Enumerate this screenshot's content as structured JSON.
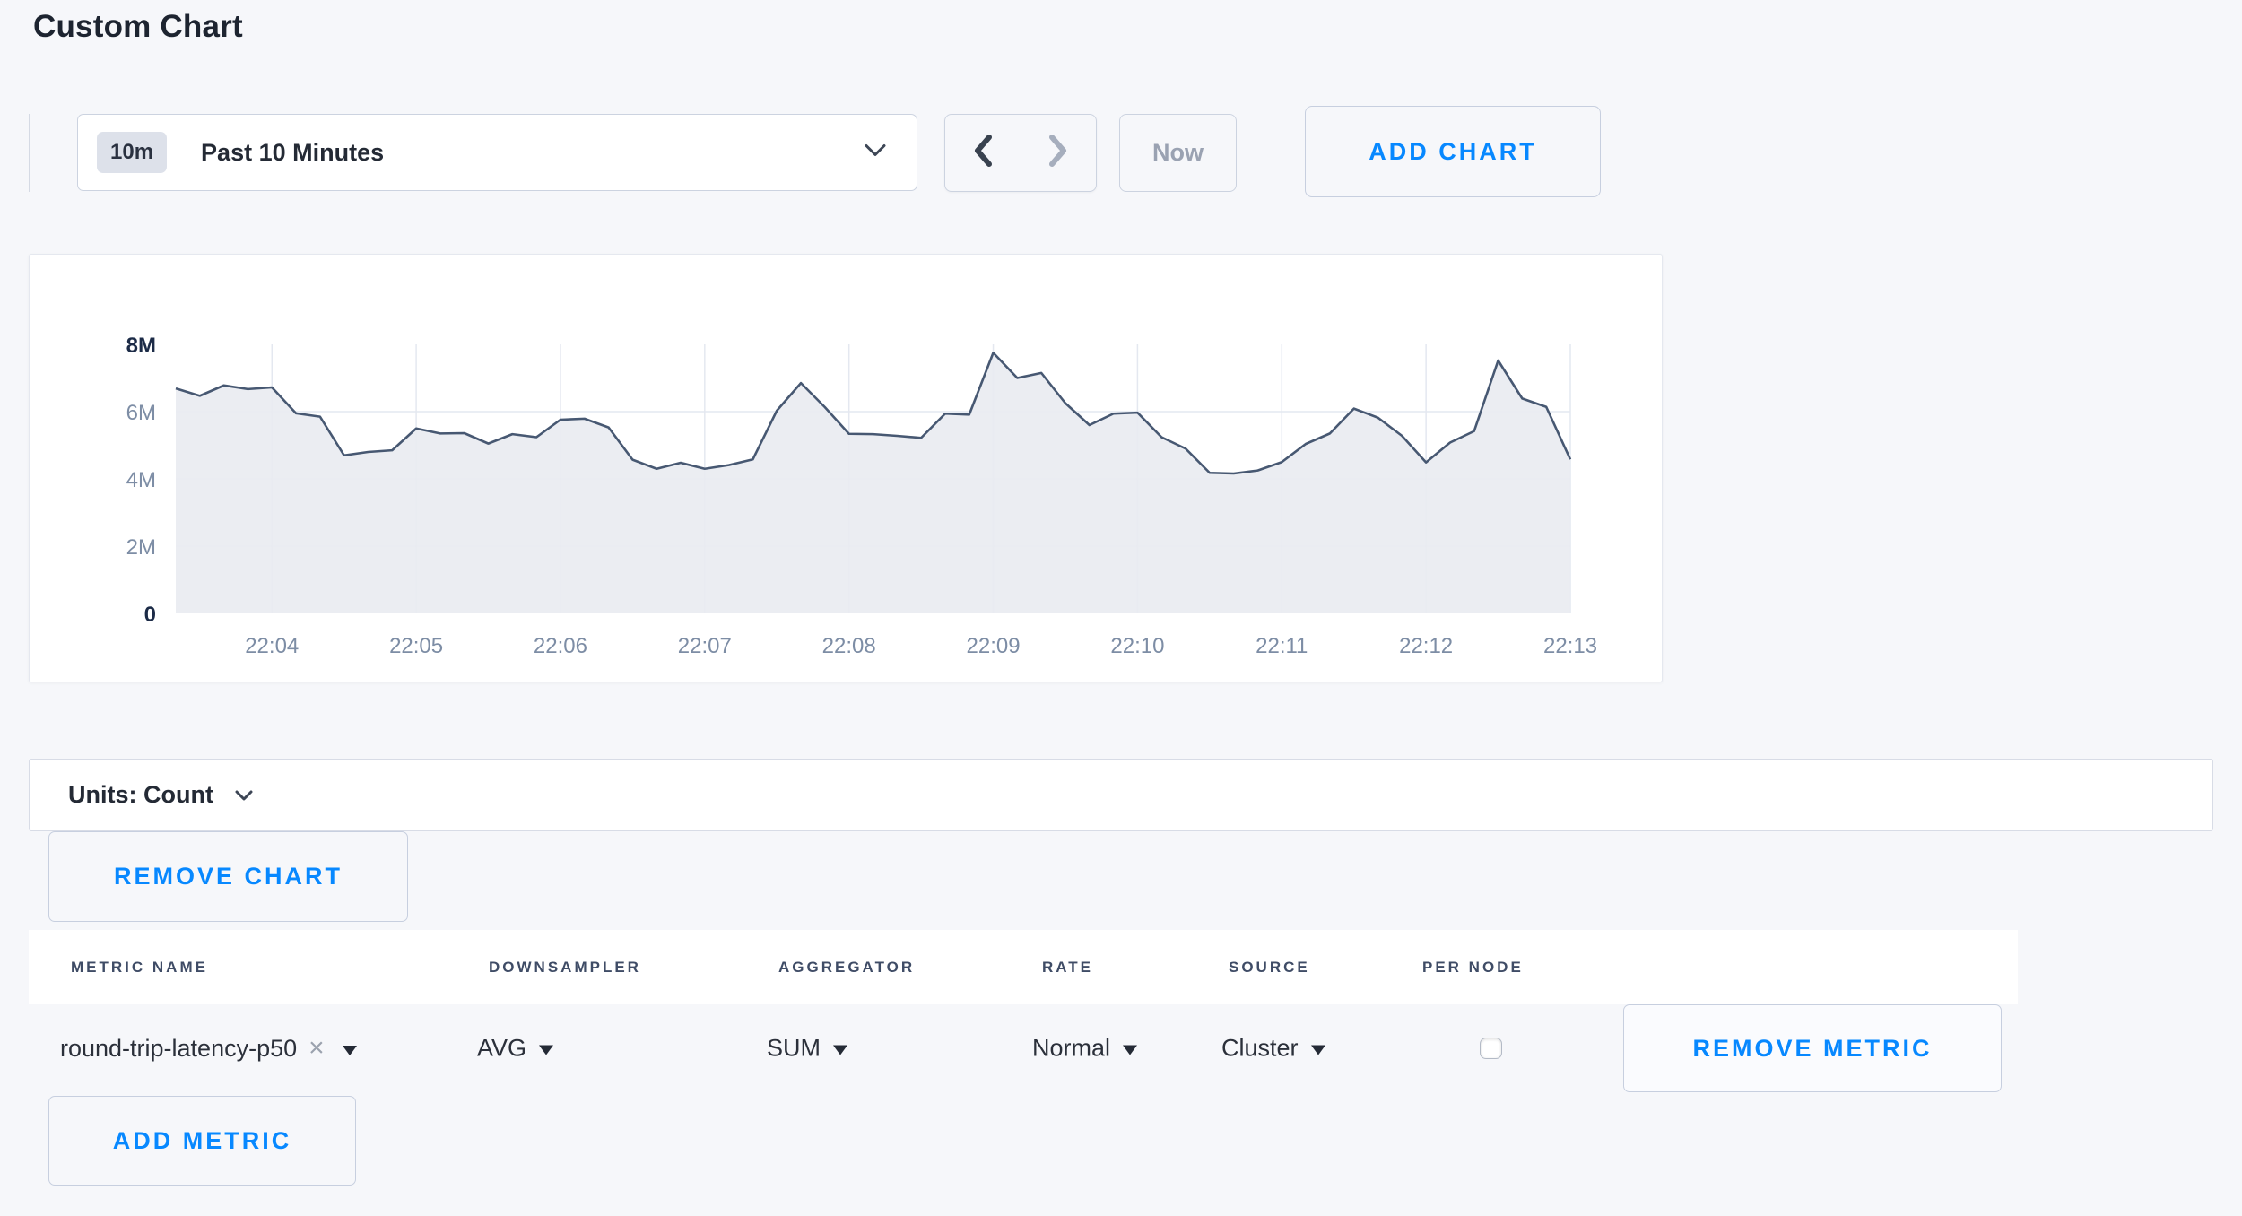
{
  "page": {
    "title": "Custom Chart"
  },
  "toolbar": {
    "time_badge": "10m",
    "time_label": "Past 10 Minutes",
    "now_label": "Now",
    "add_chart_label": "ADD CHART"
  },
  "units_bar": {
    "label": "Units: Count"
  },
  "chart_section": {
    "remove_chart_label": "REMOVE CHART"
  },
  "icons": {
    "clear_metric": "×"
  },
  "colors": {
    "accent_blue": "#0788ff",
    "page_background": "#f6f7fa",
    "chart_line": "#475872",
    "chart_fill": "#e9ebf1",
    "gridline": "#e4e8f0",
    "axis_strong": "#1c2b47",
    "axis_muted": "#7d8da5",
    "header_text": "#3f4c66",
    "muted_text": "#9aa2b2"
  },
  "chart_data": {
    "type": "area",
    "title": "",
    "unit": "Count",
    "x_start_time": "22:03:20",
    "x_step_seconds": 10,
    "ylim_millions": [
      0,
      8
    ],
    "y_gridlines_millions": [
      2,
      4,
      6
    ],
    "y_ticks": [
      {
        "label": "0",
        "value": 0,
        "strong": true
      },
      {
        "label": "2M",
        "value": 2
      },
      {
        "label": "4M",
        "value": 4
      },
      {
        "label": "6M",
        "value": 6
      },
      {
        "label": "8M",
        "value": 8,
        "strong": true
      }
    ],
    "x_ticks": [
      {
        "label": "22:04",
        "index": 4
      },
      {
        "label": "22:05",
        "index": 10
      },
      {
        "label": "22:06",
        "index": 16
      },
      {
        "label": "22:07",
        "index": 22
      },
      {
        "label": "22:08",
        "index": 28
      },
      {
        "label": "22:09",
        "index": 34
      },
      {
        "label": "22:10",
        "index": 40
      },
      {
        "label": "22:11",
        "index": 46
      },
      {
        "label": "22:12",
        "index": 52
      },
      {
        "label": "22:13",
        "index": 58
      }
    ],
    "series": [
      {
        "name": "round-trip-latency-p50",
        "values_millions": [
          6.69,
          6.47,
          6.78,
          6.67,
          6.72,
          5.95,
          5.85,
          4.7,
          4.8,
          4.85,
          5.5,
          5.35,
          5.36,
          5.05,
          5.33,
          5.24,
          5.76,
          5.79,
          5.53,
          4.57,
          4.3,
          4.48,
          4.3,
          4.41,
          4.58,
          6.03,
          6.85,
          6.13,
          5.34,
          5.33,
          5.28,
          5.22,
          5.94,
          5.91,
          7.75,
          7.0,
          7.15,
          6.25,
          5.6,
          5.94,
          5.97,
          5.24,
          4.9,
          4.18,
          4.16,
          4.25,
          4.5,
          5.04,
          5.35,
          6.09,
          5.82,
          5.28,
          4.49,
          5.08,
          5.42,
          7.52,
          6.39,
          6.14,
          4.58
        ]
      }
    ]
  },
  "metrics_table": {
    "headers": [
      "METRIC NAME",
      "DOWNSAMPLER",
      "AGGREGATOR",
      "RATE",
      "SOURCE",
      "PER NODE"
    ],
    "rows": [
      {
        "metric_name": "round-trip-latency-p50",
        "downsampler": "AVG",
        "aggregator": "SUM",
        "rate": "Normal",
        "source": "Cluster",
        "per_node_checked": false,
        "remove_label": "REMOVE METRIC"
      }
    ],
    "add_metric_label": "ADD METRIC"
  }
}
